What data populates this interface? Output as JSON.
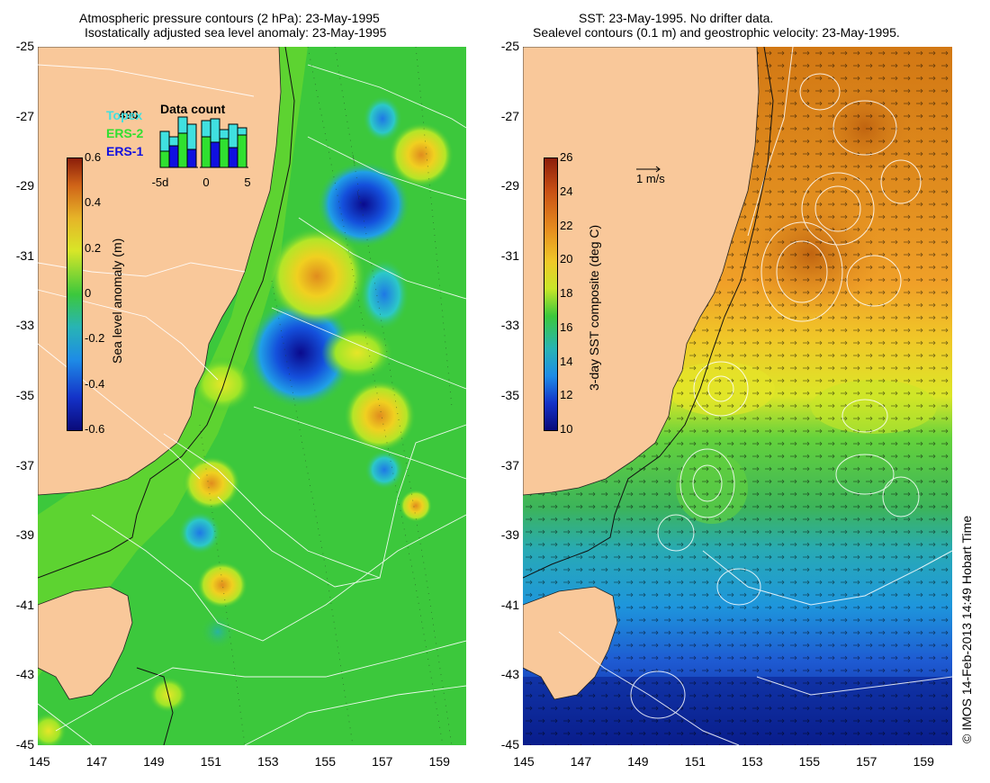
{
  "left_panel": {
    "title_line1": "Atmospheric pressure contours (2 hPa): 23-May-1995",
    "title_line2": "Isostatically adjusted sea level anomaly: 23-May-1995",
    "y_ticks": [
      "-25",
      "-27",
      "-29",
      "-31",
      "-33",
      "-35",
      "-37",
      "-39",
      "-41",
      "-43",
      "-45"
    ],
    "x_ticks": [
      "145",
      "147",
      "149",
      "151",
      "153",
      "155",
      "157",
      "159"
    ],
    "colorbar_label": "Sea level anomaly (m)",
    "colorbar_ticks": [
      "0.6",
      "0.4",
      "0.2",
      "0",
      "-0.2",
      "-0.4",
      "-0.6"
    ],
    "legend": {
      "title": "Data count",
      "count": "490",
      "satellites": [
        {
          "label": "Topex",
          "color": "#40e0e0"
        },
        {
          "label": "ERS-2",
          "color": "#30e030"
        },
        {
          "label": "ERS-1",
          "color": "#1010e0"
        }
      ],
      "x_ticks": [
        "-5d",
        "0",
        "5"
      ]
    }
  },
  "right_panel": {
    "title_line1": "SST: 23-May-1995. No drifter data.",
    "title_line2": "Sealevel contours (0.1 m) and geostrophic velocity: 23-May-1995.",
    "y_ticks": [
      "-25",
      "-27",
      "-29",
      "-31",
      "-33",
      "-35",
      "-37",
      "-39",
      "-41",
      "-43",
      "-45"
    ],
    "x_ticks": [
      "145",
      "147",
      "149",
      "151",
      "153",
      "155",
      "157",
      "159"
    ],
    "colorbar_label": "3-day SST composite (deg C)",
    "colorbar_ticks": [
      "26",
      "24",
      "22",
      "20",
      "18",
      "16",
      "14",
      "12",
      "10"
    ],
    "velocity_scale_label": "1 m/s"
  },
  "credit": "© IMOS 14-Feb-2013 14:49 Hobart Time",
  "colors": {
    "land": "#f9c89a",
    "sla_base": "#3cc83c",
    "sst_warm": "#e08a14",
    "sst_cold": "#1432b4"
  }
}
